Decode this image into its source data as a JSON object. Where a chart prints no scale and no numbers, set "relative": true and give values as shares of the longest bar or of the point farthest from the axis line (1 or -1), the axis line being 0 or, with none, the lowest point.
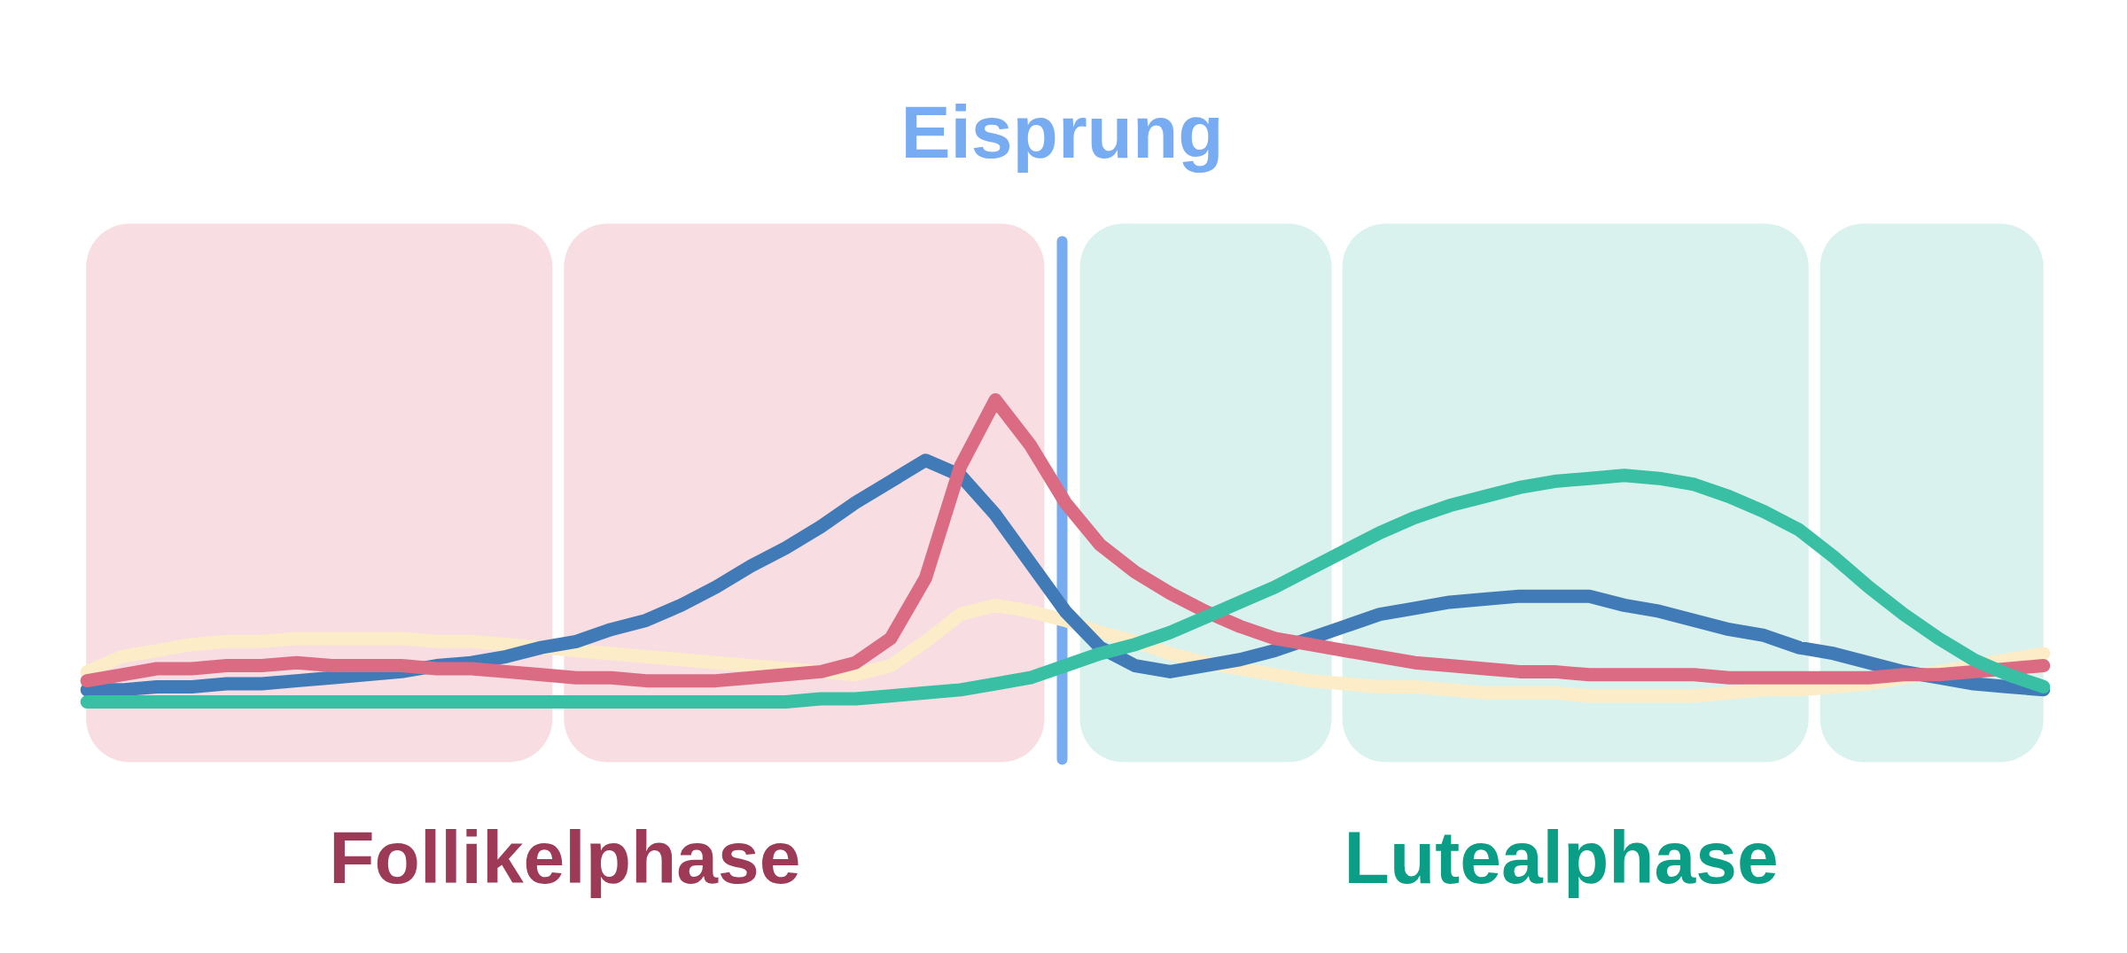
{
  "chart_data": {
    "type": "line",
    "relative": true,
    "categories": [
      null,
      null,
      null,
      null,
      null,
      null,
      null,
      null,
      null,
      null,
      null,
      null,
      null,
      null,
      null,
      null,
      null,
      null,
      null,
      null,
      null,
      null,
      null,
      null,
      null,
      null,
      null,
      null,
      null,
      null,
      null,
      null,
      null,
      null,
      null,
      null,
      null,
      null,
      null,
      null,
      null,
      null,
      null,
      null,
      null,
      null,
      null,
      null,
      null,
      null,
      null,
      null,
      null,
      null,
      null,
      null,
      null
    ],
    "series": [
      {
        "color": "#fcedc8",
        "values": [
          0.1,
          0.15,
          0.17,
          0.19,
          0.2,
          0.2,
          0.21,
          0.21,
          0.21,
          0.21,
          0.2,
          0.2,
          0.19,
          0.18,
          0.17,
          0.16,
          0.15,
          0.14,
          0.13,
          0.12,
          0.11,
          0.1,
          0.09,
          0.12,
          0.2,
          0.29,
          0.32,
          0.3,
          0.27,
          0.23,
          0.2,
          0.16,
          0.13,
          0.11,
          0.09,
          0.07,
          0.06,
          0.05,
          0.05,
          0.04,
          0.03,
          0.03,
          0.03,
          0.02,
          0.02,
          0.02,
          0.02,
          0.03,
          0.04,
          0.04,
          0.05,
          0.06,
          0.08,
          0.1,
          0.12,
          0.14,
          0.16
        ]
      },
      {
        "color": "#407bb8",
        "values": [
          0.04,
          0.04,
          0.05,
          0.05,
          0.06,
          0.06,
          0.07,
          0.08,
          0.09,
          0.1,
          0.12,
          0.13,
          0.15,
          0.18,
          0.2,
          0.24,
          0.27,
          0.32,
          0.38,
          0.45,
          0.51,
          0.58,
          0.66,
          0.73,
          0.8,
          0.75,
          0.62,
          0.46,
          0.3,
          0.18,
          0.12,
          0.1,
          0.12,
          0.14,
          0.17,
          0.21,
          0.25,
          0.29,
          0.31,
          0.33,
          0.34,
          0.35,
          0.35,
          0.35,
          0.32,
          0.3,
          0.27,
          0.24,
          0.22,
          0.18,
          0.16,
          0.13,
          0.1,
          0.08,
          0.06,
          0.05,
          0.04
        ]
      },
      {
        "color": "#db6b83",
        "values": [
          0.07,
          0.09,
          0.11,
          0.11,
          0.12,
          0.12,
          0.13,
          0.12,
          0.12,
          0.12,
          0.11,
          0.11,
          0.1,
          0.09,
          0.08,
          0.08,
          0.07,
          0.07,
          0.07,
          0.08,
          0.09,
          0.1,
          0.13,
          0.21,
          0.41,
          0.78,
          1.0,
          0.85,
          0.66,
          0.52,
          0.43,
          0.36,
          0.3,
          0.25,
          0.21,
          0.19,
          0.17,
          0.15,
          0.13,
          0.12,
          0.11,
          0.1,
          0.1,
          0.09,
          0.09,
          0.09,
          0.09,
          0.08,
          0.08,
          0.08,
          0.08,
          0.08,
          0.09,
          0.09,
          0.1,
          0.11,
          0.12
        ]
      },
      {
        "color": "#39bfa4",
        "values": [
          0,
          0,
          0,
          0,
          0,
          0,
          0,
          0,
          0,
          0,
          0,
          0,
          0,
          0,
          0,
          0,
          0,
          0,
          0,
          0,
          0.0,
          0.01,
          0.01,
          0.02,
          0.03,
          0.04,
          0.06,
          0.08,
          0.12,
          0.16,
          0.19,
          0.23,
          0.28,
          0.33,
          0.38,
          0.44,
          0.5,
          0.56,
          0.61,
          0.65,
          0.68,
          0.71,
          0.73,
          0.74,
          0.75,
          0.74,
          0.72,
          0.68,
          0.63,
          0.57,
          0.48,
          0.38,
          0.29,
          0.21,
          0.14,
          0.09,
          0.05
        ]
      }
    ],
    "annotations": [
      "Eisprung",
      "Follikelphase",
      "Lutealphase"
    ]
  }
}
